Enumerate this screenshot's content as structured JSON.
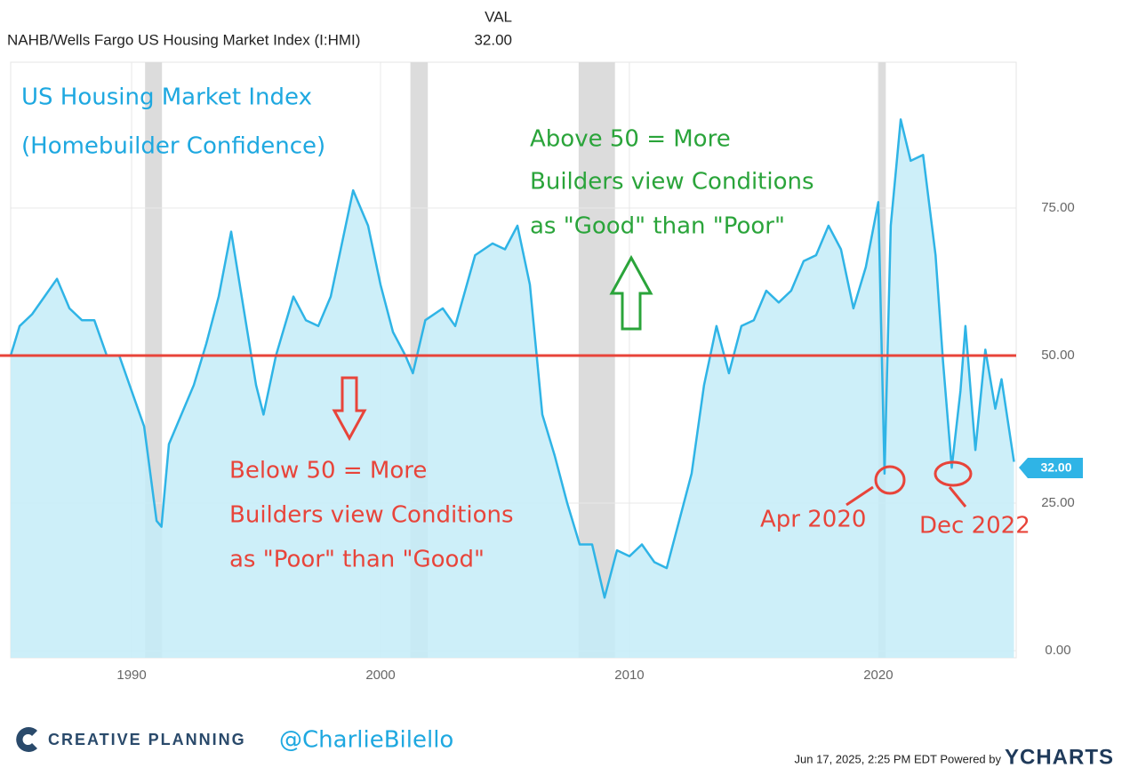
{
  "chart_data": {
    "type": "area",
    "series_label": "NAHB/Wells Fargo US Housing Market Index (I:HMI)",
    "value_header": "VAL",
    "value_label": "32.00",
    "x": [
      1985.14,
      1985.5,
      1986.0,
      1986.5,
      1987.0,
      1987.5,
      1988.0,
      1988.5,
      1989.0,
      1989.5,
      1990.0,
      1990.5,
      1991.0,
      1991.2,
      1991.5,
      1992.0,
      1992.5,
      1993.0,
      1993.5,
      1994.0,
      1994.5,
      1995.0,
      1995.3,
      1995.8,
      1996.5,
      1997.0,
      1997.5,
      1998.0,
      1998.5,
      1998.9,
      1999.5,
      2000.0,
      2000.5,
      2001.0,
      2001.3,
      2001.8,
      2002.5,
      2003.0,
      2003.8,
      2004.5,
      2005.0,
      2005.5,
      2006.0,
      2006.5,
      2007.0,
      2007.5,
      2008.0,
      2008.5,
      2009.0,
      2009.5,
      2010.0,
      2010.5,
      2011.0,
      2011.5,
      2012.0,
      2012.5,
      2013.0,
      2013.5,
      2014.0,
      2014.5,
      2015.0,
      2015.5,
      2016.0,
      2016.5,
      2017.0,
      2017.5,
      2018.0,
      2018.5,
      2019.0,
      2019.5,
      2020.0,
      2020.25,
      2020.5,
      2020.9,
      2021.3,
      2021.8,
      2022.3,
      2022.6,
      2022.95,
      2023.3,
      2023.5,
      2023.9,
      2024.3,
      2024.7,
      2024.95,
      2025.2,
      2025.45
    ],
    "values": [
      50,
      55,
      57,
      60,
      63,
      58,
      56,
      56,
      50,
      50,
      44,
      38,
      22,
      21,
      35,
      40,
      45,
      52,
      60,
      71,
      58,
      45,
      40,
      50,
      60,
      56,
      55,
      60,
      70,
      78,
      72,
      62,
      54,
      50,
      47,
      56,
      58,
      55,
      67,
      69,
      68,
      72,
      62,
      40,
      33,
      25,
      18,
      18,
      9,
      17,
      16,
      18,
      15,
      14,
      22,
      30,
      45,
      55,
      47,
      55,
      56,
      61,
      59,
      61,
      66,
      67,
      72,
      68,
      58,
      65,
      76,
      30,
      72,
      90,
      83,
      84,
      67,
      49,
      31,
      44,
      55,
      34,
      51,
      41,
      46,
      39,
      32
    ],
    "color": "#2fb4e6",
    "fill": "#c4ecf8",
    "xlim": [
      1985.14,
      2025.54
    ],
    "ylim": [
      -1.2,
      99.7
    ],
    "xticks": [
      1990,
      2000,
      2010,
      2020
    ],
    "yticks": [
      {
        "value": 0,
        "label": "0.00"
      },
      {
        "value": 25,
        "label": "25.00"
      },
      {
        "value": 50,
        "label": "50.00"
      },
      {
        "value": 75,
        "label": "75.00"
      }
    ],
    "grid": true,
    "recessions": [
      [
        1990.54,
        1991.22
      ],
      [
        2001.2,
        2001.9
      ],
      [
        2007.96,
        2009.42
      ],
      [
        2020.0,
        2020.3
      ]
    ],
    "reference_line": 50,
    "reference_color": "#e8443a",
    "annotations": {
      "title": [
        "US Housing Market Index",
        "(Homebuilder Confidence)"
      ],
      "above": [
        "Above 50 = More",
        "Builders view Conditions",
        "as \"Good\" than \"Poor\""
      ],
      "below": [
        "Below 50 = More",
        "Builders view Conditions",
        "as \"Poor\" than \"Good\""
      ],
      "apr": "Apr 2020",
      "dec": "Dec 2022"
    },
    "footer": {
      "brand": "CREATIVE PLANNING",
      "handle": "@CharlieBilello",
      "stamp": "Jun 17, 2025, 2:25 PM EDT Powered by",
      "logo": "YCHARTS"
    }
  }
}
